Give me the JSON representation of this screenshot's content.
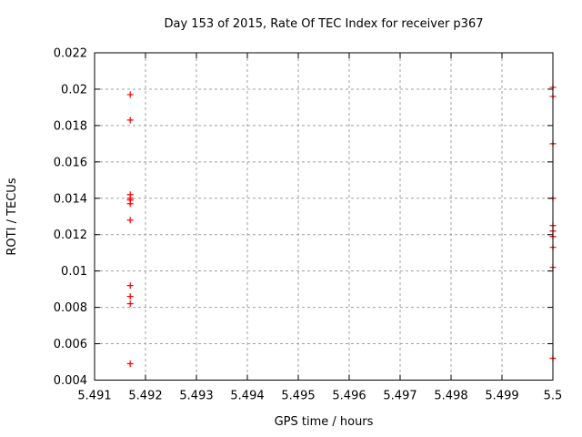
{
  "page": {
    "background": "#ffffff"
  },
  "chart_data": {
    "type": "scatter",
    "title": "Day 153 of 2015, Rate Of TEC Index for receiver p367",
    "xlabel": "GPS time / hours",
    "ylabel": "ROTI / TECUs",
    "xlim": [
      5.491,
      5.5
    ],
    "ylim": [
      0.004,
      0.022
    ],
    "xtick_labels": [
      "5.491",
      "5.492",
      "5.493",
      "5.494",
      "5.495",
      "5.496",
      "5.497",
      "5.498",
      "5.499",
      "5.5"
    ],
    "ytick_labels": [
      "0.004",
      "0.006",
      "0.008",
      "0.01",
      "0.012",
      "0.014",
      "0.016",
      "0.018",
      "0.02",
      "0.022"
    ],
    "grid": true,
    "legend": "none",
    "marker": "plus",
    "marker_size": 7,
    "colors": {
      "points": "#ff0000",
      "grid": "#a0a0a0",
      "axis": "#000000",
      "text": "#000000"
    },
    "series": [
      {
        "name": "ROTI",
        "points": [
          [
            5.4917,
            0.0197
          ],
          [
            5.4917,
            0.0183
          ],
          [
            5.4917,
            0.0142
          ],
          [
            5.4917,
            0.014
          ],
          [
            5.4917,
            0.0139
          ],
          [
            5.4917,
            0.0137
          ],
          [
            5.4917,
            0.0128
          ],
          [
            5.4917,
            0.0092
          ],
          [
            5.4917,
            0.0086
          ],
          [
            5.4917,
            0.0082
          ],
          [
            5.4917,
            0.0049
          ],
          [
            5.5,
            0.0201
          ],
          [
            5.5,
            0.0196
          ],
          [
            5.5,
            0.017
          ],
          [
            5.5,
            0.014
          ],
          [
            5.5,
            0.0125
          ],
          [
            5.5,
            0.0122
          ],
          [
            5.5,
            0.0119
          ],
          [
            5.5,
            0.0113
          ],
          [
            5.5,
            0.0102
          ],
          [
            5.5,
            0.0052
          ]
        ]
      }
    ]
  }
}
